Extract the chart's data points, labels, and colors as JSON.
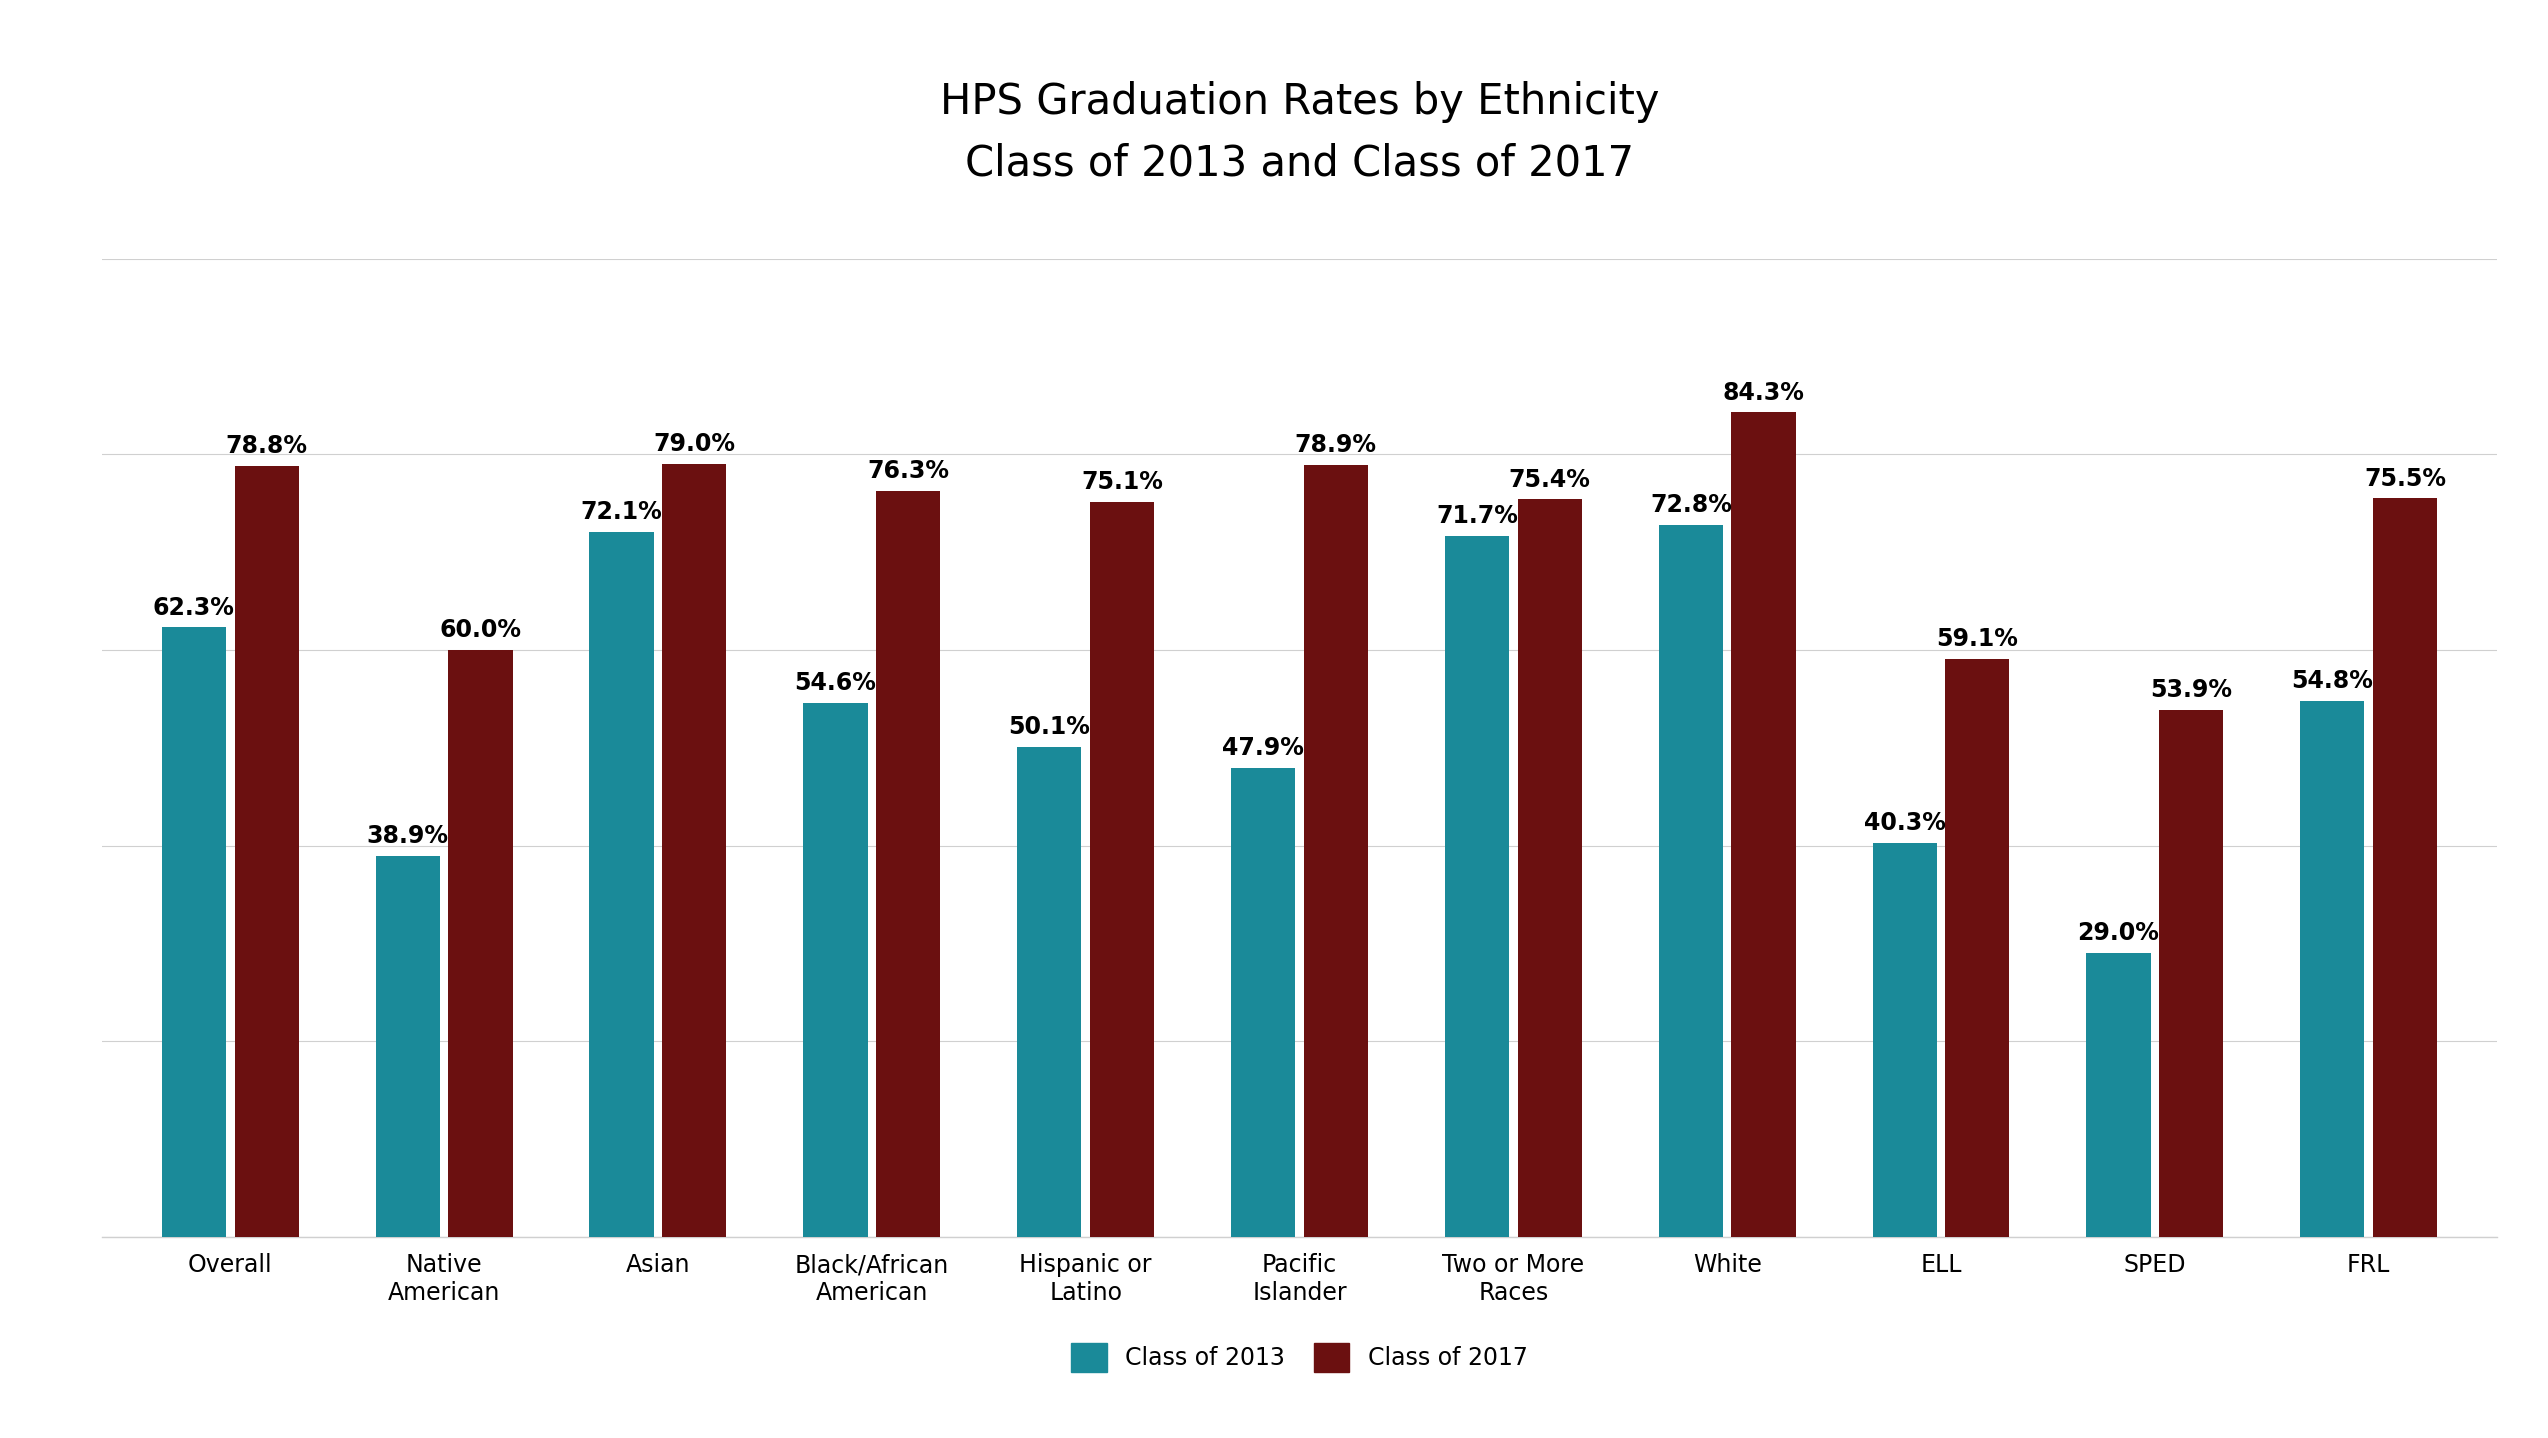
{
  "title": "HPS Graduation Rates by Ethnicity\nClass of 2013 and Class of 2017",
  "categories": [
    "Overall",
    "Native\nAmerican",
    "Asian",
    "Black/African\nAmerican",
    "Hispanic or\nLatino",
    "Pacific\nIslander",
    "Two or More\nRaces",
    "White",
    "ELL",
    "SPED",
    "FRL"
  ],
  "values_2013": [
    62.3,
    38.9,
    72.1,
    54.6,
    50.1,
    47.9,
    71.7,
    72.8,
    40.3,
    29.0,
    54.8
  ],
  "values_2017": [
    78.8,
    60.0,
    79.0,
    76.3,
    75.1,
    78.9,
    75.4,
    84.3,
    59.1,
    53.9,
    75.5
  ],
  "color_2013": "#1a8a99",
  "color_2017": "#6b1010",
  "background_color": "#ffffff",
  "title_fontsize": 30,
  "tick_fontsize": 17,
  "legend_fontsize": 17,
  "bar_label_fontsize": 17,
  "legend_label_2013": "Class of 2013",
  "legend_label_2017": "Class of 2017",
  "ylim": [
    0,
    100
  ],
  "bar_width": 0.3,
  "grid_color": "#d0d0d0"
}
